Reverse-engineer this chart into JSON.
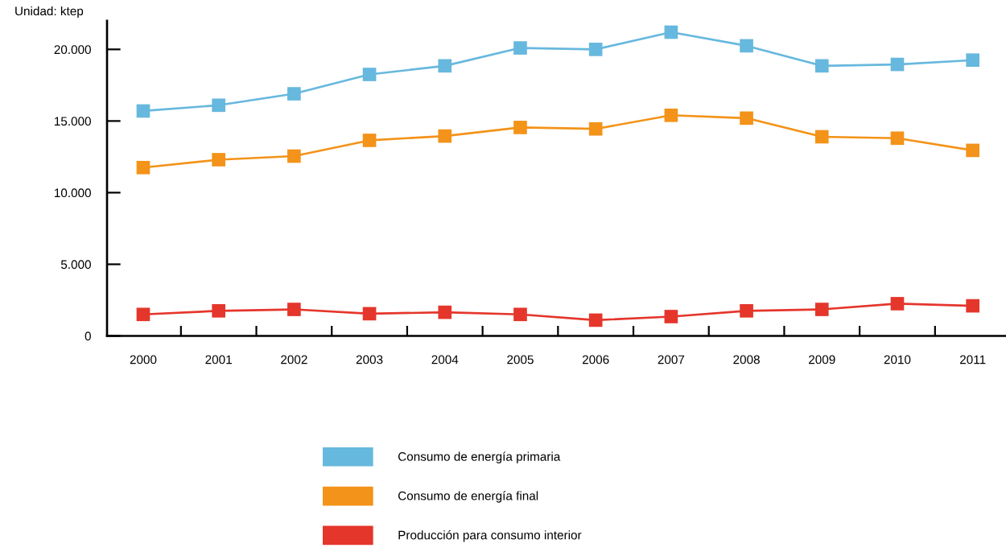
{
  "chart_data": {
    "type": "line",
    "ylabel": "Unidad: ktep",
    "categories": [
      "2000",
      "2001",
      "2002",
      "2003",
      "2004",
      "2005",
      "2006",
      "2007",
      "2008",
      "2009",
      "2010",
      "2011"
    ],
    "series": [
      {
        "name": "Consumo de energía primaria",
        "color": "#67b8de",
        "values": [
          15700,
          16100,
          16900,
          18250,
          18850,
          20100,
          20000,
          21200,
          20250,
          18850,
          18950,
          19250
        ]
      },
      {
        "name": "Consumo de energía final",
        "color": "#f39319",
        "values": [
          11750,
          12300,
          12550,
          13650,
          13950,
          14550,
          14450,
          15400,
          15200,
          13900,
          13800,
          12950
        ]
      },
      {
        "name": "Producción para consumo interior",
        "color": "#e5362c",
        "values": [
          1500,
          1750,
          1850,
          1550,
          1650,
          1500,
          1100,
          1350,
          1750,
          1850,
          2250,
          2100
        ]
      }
    ],
    "ylim": [
      0,
      22000
    ],
    "yticks": [
      0,
      {
        "value": 5000,
        "label": "5.000"
      },
      {
        "value": 10000,
        "label": "10.000"
      },
      {
        "value": 15000,
        "label": "15.000"
      },
      {
        "value": 20000,
        "label": "20.000"
      }
    ],
    "marker": "square",
    "line_style": "solid",
    "grid": false,
    "legend": "bottom"
  }
}
